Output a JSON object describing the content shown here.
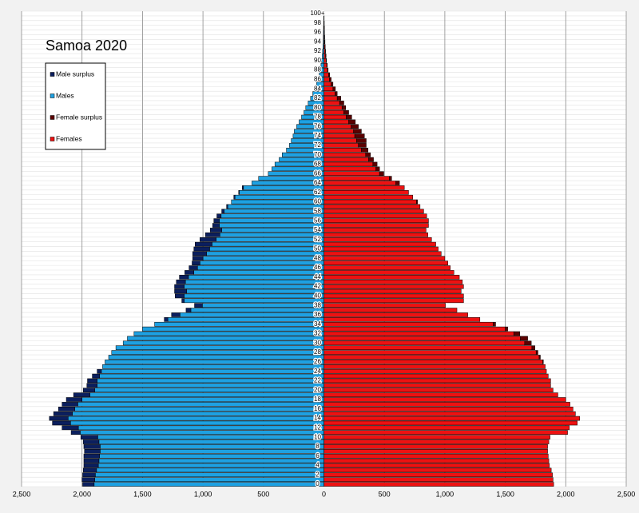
{
  "chart_data": {
    "type": "pyramid",
    "title": "Samoa 2020",
    "categories": [
      "0",
      null,
      "2",
      null,
      "4",
      null,
      "6",
      null,
      "8",
      null,
      "10",
      null,
      "12",
      null,
      "14",
      null,
      "16",
      null,
      "18",
      null,
      "20",
      null,
      "22",
      null,
      "24",
      null,
      "26",
      null,
      "28",
      null,
      "30",
      null,
      "32",
      null,
      "34",
      null,
      "36",
      null,
      "38",
      null,
      "40",
      null,
      "42",
      null,
      "44",
      null,
      "46",
      null,
      "48",
      null,
      "50",
      null,
      "52",
      null,
      "54",
      null,
      "56",
      null,
      "58",
      null,
      "60",
      null,
      "62",
      null,
      "64",
      null,
      "66",
      null,
      "68",
      null,
      "70",
      null,
      "72",
      null,
      "74",
      null,
      "76",
      null,
      "78",
      null,
      "80",
      null,
      "82",
      null,
      "84",
      null,
      "86",
      null,
      "88",
      null,
      "90",
      null,
      "92",
      null,
      "94",
      null,
      "96",
      null,
      "98",
      null,
      "100+"
    ],
    "series": [
      {
        "name": "Male surplus",
        "color": "#0b1f5e",
        "values": [
          -95,
          -105,
          -105,
          -110,
          -120,
          -125,
          -130,
          -130,
          -135,
          -130,
          -140,
          -75,
          -135,
          -150,
          -155,
          -155,
          -135,
          -130,
          -130,
          -135,
          -95,
          -85,
          -80,
          -60,
          -35,
          0,
          0,
          0,
          0,
          0,
          0,
          0,
          0,
          0,
          0,
          -30,
          -70,
          -40,
          -65,
          -20,
          -75,
          -100,
          -80,
          -75,
          -75,
          -75,
          -70,
          -65,
          -85,
          -115,
          -130,
          -140,
          -135,
          -120,
          -95,
          -55,
          -45,
          -35,
          -20,
          -10,
          0,
          -10,
          -5,
          -10,
          0,
          0,
          0,
          0,
          0,
          0,
          0,
          0,
          0,
          0,
          0,
          0,
          0,
          0,
          0,
          0,
          0,
          0,
          0,
          0,
          0,
          0,
          0,
          0,
          0,
          0,
          0,
          0,
          0,
          0,
          0,
          0,
          0,
          0,
          0,
          0,
          0
        ]
      },
      {
        "name": "Males",
        "color": "#1ea1e2",
        "values": [
          -1900,
          -1895,
          -1890,
          -1880,
          -1865,
          -1860,
          -1855,
          -1850,
          -1850,
          -1860,
          -1870,
          -2015,
          -2030,
          -2095,
          -2115,
          -2080,
          -2060,
          -2035,
          -2000,
          -1935,
          -1895,
          -1875,
          -1875,
          -1855,
          -1840,
          -1830,
          -1810,
          -1780,
          -1755,
          -1720,
          -1660,
          -1625,
          -1570,
          -1500,
          -1400,
          -1290,
          -1190,
          -1100,
          -1005,
          -1155,
          -1155,
          -1135,
          -1155,
          -1145,
          -1120,
          -1075,
          -1045,
          -1025,
          -1000,
          -970,
          -945,
          -925,
          -890,
          -860,
          -845,
          -865,
          -865,
          -850,
          -825,
          -795,
          -765,
          -735,
          -700,
          -665,
          -595,
          -540,
          -460,
          -430,
          -405,
          -370,
          -345,
          -310,
          -285,
          -270,
          -255,
          -245,
          -225,
          -205,
          -185,
          -165,
          -150,
          -130,
          -110,
          -92,
          -75,
          -60,
          -46,
          -38,
          -30,
          -24,
          -18,
          -14,
          -11,
          -8,
          -6,
          -5,
          -4,
          -3,
          -2,
          -1,
          -1
        ]
      },
      {
        "name": "Female surplus",
        "color": "#5c0000",
        "values": [
          0,
          0,
          0,
          0,
          0,
          0,
          0,
          0,
          0,
          0,
          0,
          0,
          0,
          0,
          0,
          0,
          0,
          0,
          0,
          0,
          0,
          0,
          0,
          0,
          0,
          0,
          5,
          10,
          15,
          25,
          55,
          60,
          50,
          20,
          20,
          0,
          0,
          0,
          0,
          0,
          0,
          0,
          0,
          0,
          0,
          0,
          0,
          0,
          0,
          0,
          0,
          0,
          0,
          0,
          0,
          0,
          0,
          0,
          0,
          0,
          10,
          0,
          0,
          0,
          30,
          20,
          35,
          30,
          35,
          40,
          40,
          55,
          65,
          80,
          80,
          65,
          60,
          55,
          45,
          40,
          30,
          35,
          30,
          18,
          20,
          15,
          14,
          10,
          5,
          4,
          4,
          4,
          3,
          3,
          3,
          2,
          1,
          1,
          1,
          1,
          1
        ]
      },
      {
        "name": "Females",
        "color": "#ee1111",
        "values": [
          1900,
          1895,
          1890,
          1880,
          1865,
          1860,
          1855,
          1850,
          1850,
          1860,
          1870,
          2015,
          2030,
          2095,
          2115,
          2080,
          2060,
          2035,
          2000,
          1935,
          1895,
          1875,
          1875,
          1855,
          1840,
          1830,
          1810,
          1780,
          1755,
          1720,
          1660,
          1625,
          1570,
          1500,
          1400,
          1290,
          1190,
          1100,
          1005,
          1155,
          1155,
          1135,
          1155,
          1145,
          1120,
          1075,
          1045,
          1025,
          1000,
          970,
          945,
          925,
          890,
          860,
          845,
          865,
          865,
          850,
          825,
          795,
          765,
          735,
          700,
          665,
          595,
          540,
          460,
          430,
          405,
          370,
          345,
          310,
          285,
          270,
          255,
          245,
          225,
          205,
          185,
          165,
          150,
          130,
          110,
          92,
          75,
          60,
          46,
          38,
          30,
          24,
          18,
          14,
          11,
          8,
          6,
          5,
          4,
          3,
          2,
          1,
          1
        ]
      }
    ],
    "xlim": [
      -2500,
      2500
    ],
    "xticks": [
      {
        "value": -2500,
        "label": "2,500"
      },
      {
        "value": -2000,
        "label": "2,000"
      },
      {
        "value": -1500,
        "label": "1,500"
      },
      {
        "value": -1000,
        "label": "1,000"
      },
      {
        "value": -500,
        "label": "500"
      },
      0,
      {
        "value": 500,
        "label": "500"
      },
      {
        "value": 1000,
        "label": "1,000"
      },
      {
        "value": 1500,
        "label": "1,500"
      },
      {
        "value": 2000,
        "label": "2,000"
      },
      {
        "value": 2500,
        "label": "2,500"
      }
    ],
    "grid": true,
    "legend": "upper left"
  }
}
